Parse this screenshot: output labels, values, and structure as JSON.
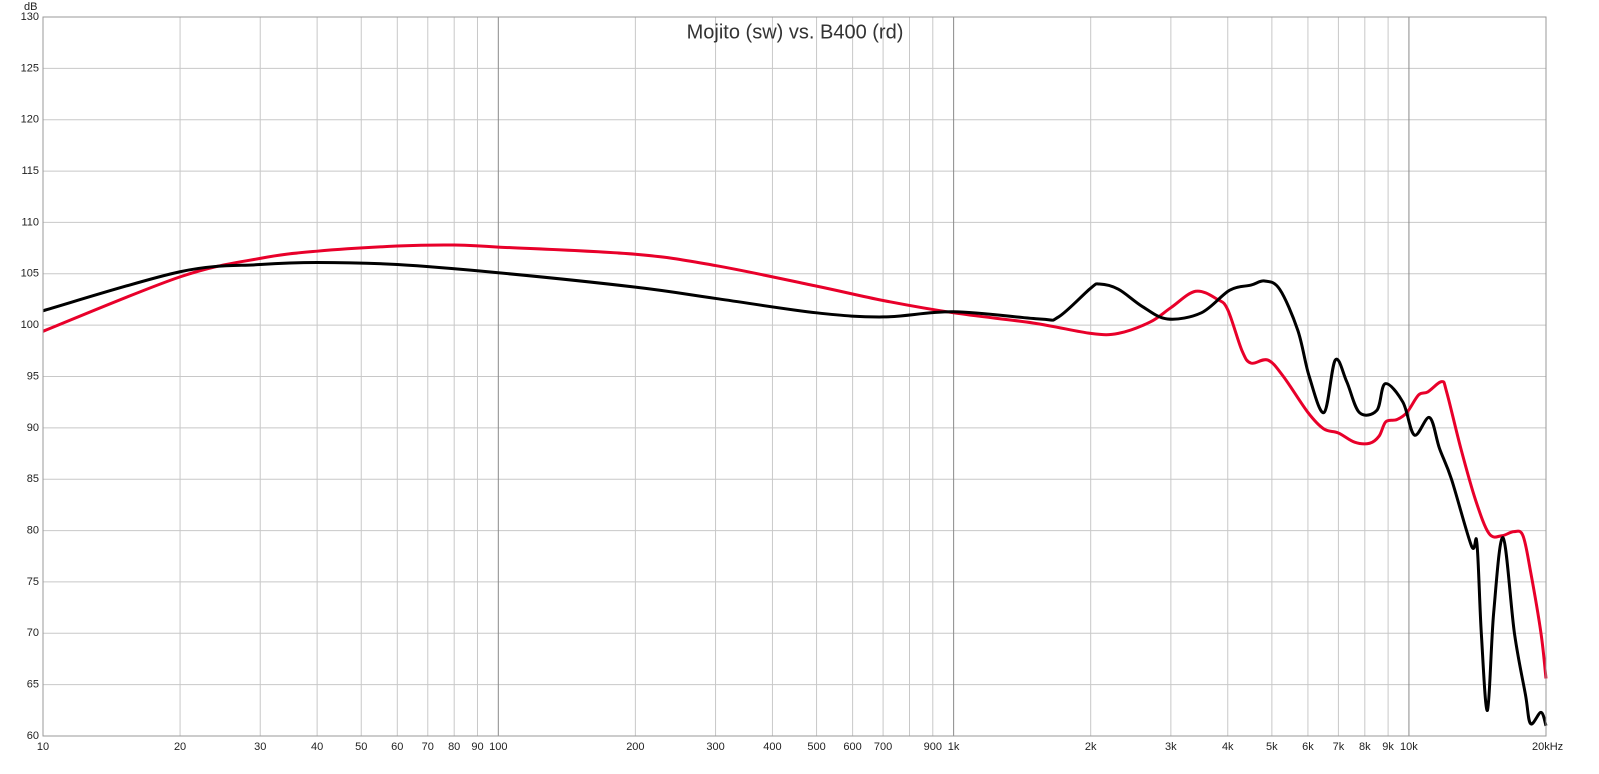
{
  "chart_data": {
    "type": "line",
    "title": "Mojito (sw) vs. B400 (rd)",
    "y_label": "dB",
    "log_x": true,
    "grid": true,
    "xlim": [
      10,
      20000
    ],
    "ylim": [
      60,
      130
    ],
    "xticks": [
      10,
      20,
      30,
      40,
      50,
      60,
      70,
      80,
      90,
      100,
      200,
      300,
      400,
      500,
      600,
      700,
      {
        "value": 800,
        "label": null
      },
      900,
      {
        "value": 1000,
        "label": "1k"
      },
      {
        "value": 2000,
        "label": "2k"
      },
      {
        "value": 3000,
        "label": "3k"
      },
      {
        "value": 4000,
        "label": "4k"
      },
      {
        "value": 5000,
        "label": "5k"
      },
      {
        "value": 6000,
        "label": "6k"
      },
      {
        "value": 7000,
        "label": "7k"
      },
      {
        "value": 8000,
        "label": "8k"
      },
      {
        "value": 9000,
        "label": "9k"
      },
      {
        "value": 10000,
        "label": "10k"
      },
      {
        "value": 20000,
        "label": "20kHz"
      }
    ],
    "yticks": [
      60,
      65,
      70,
      75,
      80,
      85,
      90,
      95,
      100,
      105,
      110,
      115,
      120,
      125,
      130
    ],
    "series": [
      {
        "color": "#e8002a",
        "x": [
          10,
          20,
          30,
          40,
          60,
          80,
          100,
          200,
          300,
          500,
          700,
          1000,
          1500,
          2000,
          2300,
          2700,
          3000,
          3400,
          3800,
          4000,
          4300,
          4500,
          4900,
          5300,
          6000,
          6500,
          7000,
          7600,
          8200,
          8600,
          8900,
          9400,
          9900,
          10500,
          11000,
          11800,
          12100,
          13000,
          14000,
          15000,
          16000,
          17000,
          17800,
          18500,
          19500,
          20000
        ],
        "values": [
          99.4,
          104.7,
          106.5,
          107.2,
          107.7,
          107.8,
          107.6,
          106.9,
          105.8,
          103.8,
          102.4,
          101.2,
          100.2,
          99.2,
          99.2,
          100.3,
          101.7,
          103.3,
          102.5,
          101.5,
          97.5,
          96.3,
          96.6,
          95,
          91.5,
          89.9,
          89.5,
          88.6,
          88.5,
          89.2,
          90.6,
          90.8,
          91.5,
          93.2,
          93.5,
          94.5,
          93.5,
          88,
          83,
          79.7,
          79.5,
          79.9,
          79.5,
          76,
          70,
          65.6
        ]
      },
      {
        "color": "#000000",
        "x": [
          10,
          20,
          30,
          40,
          60,
          100,
          200,
          300,
          500,
          700,
          1000,
          1545,
          1700,
          2000,
          2090,
          2300,
          2600,
          2950,
          3500,
          4040,
          4500,
          4820,
          5200,
          5700,
          6040,
          6510,
          6890,
          7300,
          7780,
          8500,
          8870,
          9700,
          10280,
          11100,
          11670,
          12400,
          13720,
          14100,
          14420,
          14875,
          15350,
          16100,
          17050,
          18030,
          18500,
          19500,
          20000
        ],
        "values": [
          101.4,
          105.2,
          105.9,
          106.1,
          105.9,
          105.1,
          103.7,
          102.6,
          101.2,
          100.8,
          101.3,
          100.6,
          100.8,
          103.6,
          104,
          103.5,
          101.8,
          100.6,
          101.2,
          103.4,
          103.9,
          104.3,
          103.5,
          99.5,
          95,
          91.5,
          96.6,
          94.5,
          91.5,
          91.7,
          94.3,
          92.5,
          89.3,
          91,
          88,
          85,
          78.5,
          78.8,
          70,
          62.5,
          72,
          79.3,
          70,
          64,
          61.2,
          62.3,
          61
        ]
      }
    ]
  }
}
